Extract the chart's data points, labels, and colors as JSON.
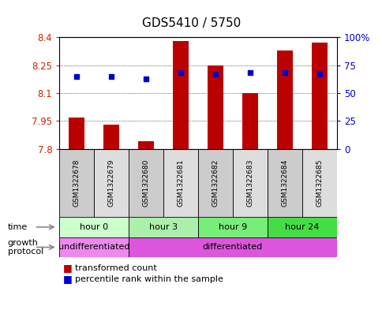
{
  "title": "GDS5410 / 5750",
  "samples": [
    "GSM1322678",
    "GSM1322679",
    "GSM1322680",
    "GSM1322681",
    "GSM1322682",
    "GSM1322683",
    "GSM1322684",
    "GSM1322685"
  ],
  "bar_values": [
    7.97,
    7.93,
    7.84,
    8.38,
    8.25,
    8.1,
    8.33,
    8.37
  ],
  "percentile_values": [
    65,
    65,
    63,
    68,
    67,
    68,
    68,
    67
  ],
  "ylim_left": [
    7.8,
    8.4
  ],
  "yticks_left": [
    7.8,
    7.95,
    8.1,
    8.25,
    8.4
  ],
  "yticks_right": [
    0,
    25,
    50,
    75,
    100
  ],
  "bar_color": "#bb0000",
  "dot_color": "#0000cc",
  "bar_width": 0.45,
  "time_groups": [
    {
      "label": "hour 0",
      "start": 0,
      "end": 2,
      "color": "#ccffcc"
    },
    {
      "label": "hour 3",
      "start": 2,
      "end": 4,
      "color": "#aaf0aa"
    },
    {
      "label": "hour 9",
      "start": 4,
      "end": 6,
      "color": "#77ee77"
    },
    {
      "label": "hour 24",
      "start": 6,
      "end": 8,
      "color": "#44dd44"
    }
  ],
  "protocol_groups": [
    {
      "label": "undifferentiated",
      "start": 0,
      "end": 2,
      "color": "#ee88ee"
    },
    {
      "label": "differentiated",
      "start": 2,
      "end": 8,
      "color": "#dd55dd"
    }
  ],
  "legend_items": [
    {
      "label": "transformed count",
      "color": "#bb0000"
    },
    {
      "label": "percentile rank within the sample",
      "color": "#0000cc"
    }
  ],
  "axis_label_color_left": "#cc2200",
  "axis_label_color_right": "#0000cc",
  "sample_box_color": "#cccccc",
  "sample_box_color2": "#dddddd"
}
